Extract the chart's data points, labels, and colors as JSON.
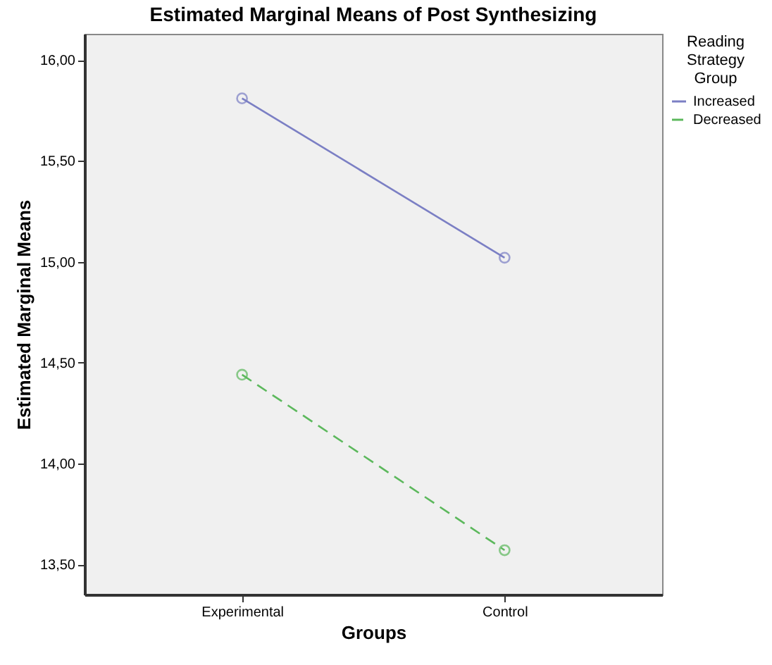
{
  "chart_data": {
    "type": "line",
    "title": "Estimated Marginal Means of Post Synthesizing",
    "xlabel": "Groups",
    "ylabel": "Estimated Marginal Means",
    "legend_title": "Reading Strategy Group",
    "categories": [
      "Experimental",
      "Control"
    ],
    "series": [
      {
        "name": "Increased",
        "color": "#7b7fc4",
        "line_style": "solid",
        "values": [
          15.81,
          15.02
        ]
      },
      {
        "name": "Decreased",
        "color": "#5cb85c",
        "line_style": "dashed",
        "values": [
          14.44,
          13.57
        ]
      }
    ],
    "ylim": [
      13.35,
      16.13
    ],
    "yticks": [
      {
        "value": 13.5,
        "label": "13,50"
      },
      {
        "value": 14,
        "label": "14,00"
      },
      {
        "value": 14.5,
        "label": "14,50"
      },
      {
        "value": 15,
        "label": "15,00"
      },
      {
        "value": 15.5,
        "label": "15,50"
      },
      {
        "value": 16,
        "label": "16,00"
      }
    ],
    "grid": false,
    "legend": "top right",
    "marker": "circle"
  }
}
